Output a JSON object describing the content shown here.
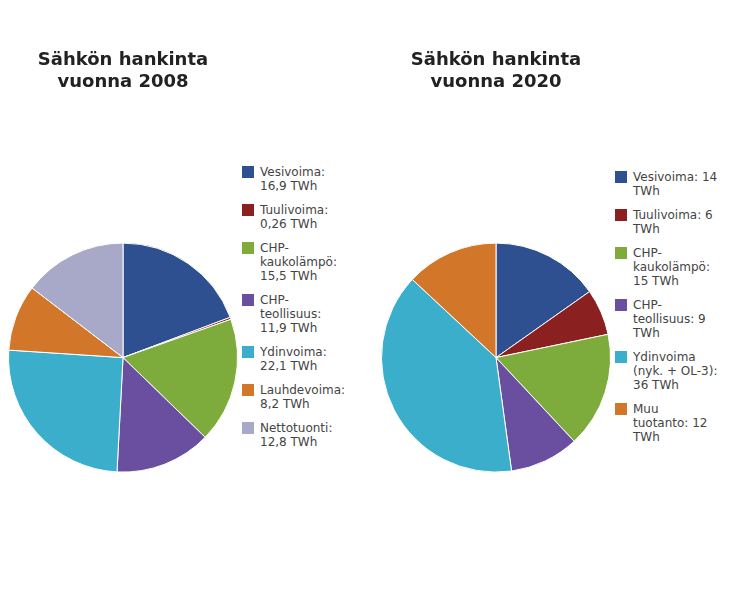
{
  "chart_data": [
    {
      "type": "pie",
      "title": "Sähkön hankinta\nvuonna 2008",
      "categories": [
        "Vesivoima:\n16,9 TWh",
        "Tuulivoima:\n0,26 TWh",
        "CHP-\nkaukolämpö:\n15,5 TWh",
        "CHP-\nteollisuus:\n11,9 TWh",
        "Ydinvoima:\n22,1 TWh",
        "Lauhdevoima:\n8,2 TWh",
        "Nettotuonti:\n12,8 TWh"
      ],
      "values": [
        16.9,
        0.26,
        15.5,
        11.9,
        22.1,
        8.2,
        12.8
      ],
      "colors": [
        "#2E5090",
        "#8B2020",
        "#7DAB3C",
        "#6A4FA0",
        "#3BAECC",
        "#D2762A",
        "#A8A8C8"
      ],
      "legend": "right"
    },
    {
      "type": "pie",
      "title": "Sähkön hankinta\nvuonna 2020",
      "categories": [
        "Vesivoima: 14\nTWh",
        "Tuulivoima: 6\nTWh",
        "CHP-\nkaukolämpö:\n15 TWh",
        "CHP-\nteollisuus: 9\nTWh",
        "Ydinvoima\n(nyk. + OL-3):\n36 TWh",
        "Muu\ntuotanto: 12\nTWh"
      ],
      "values": [
        14,
        6,
        15,
        9,
        36,
        12
      ],
      "colors": [
        "#2E5090",
        "#8B2020",
        "#7DAB3C",
        "#6A4FA0",
        "#3BAECC",
        "#D2762A"
      ],
      "legend": "right"
    }
  ]
}
